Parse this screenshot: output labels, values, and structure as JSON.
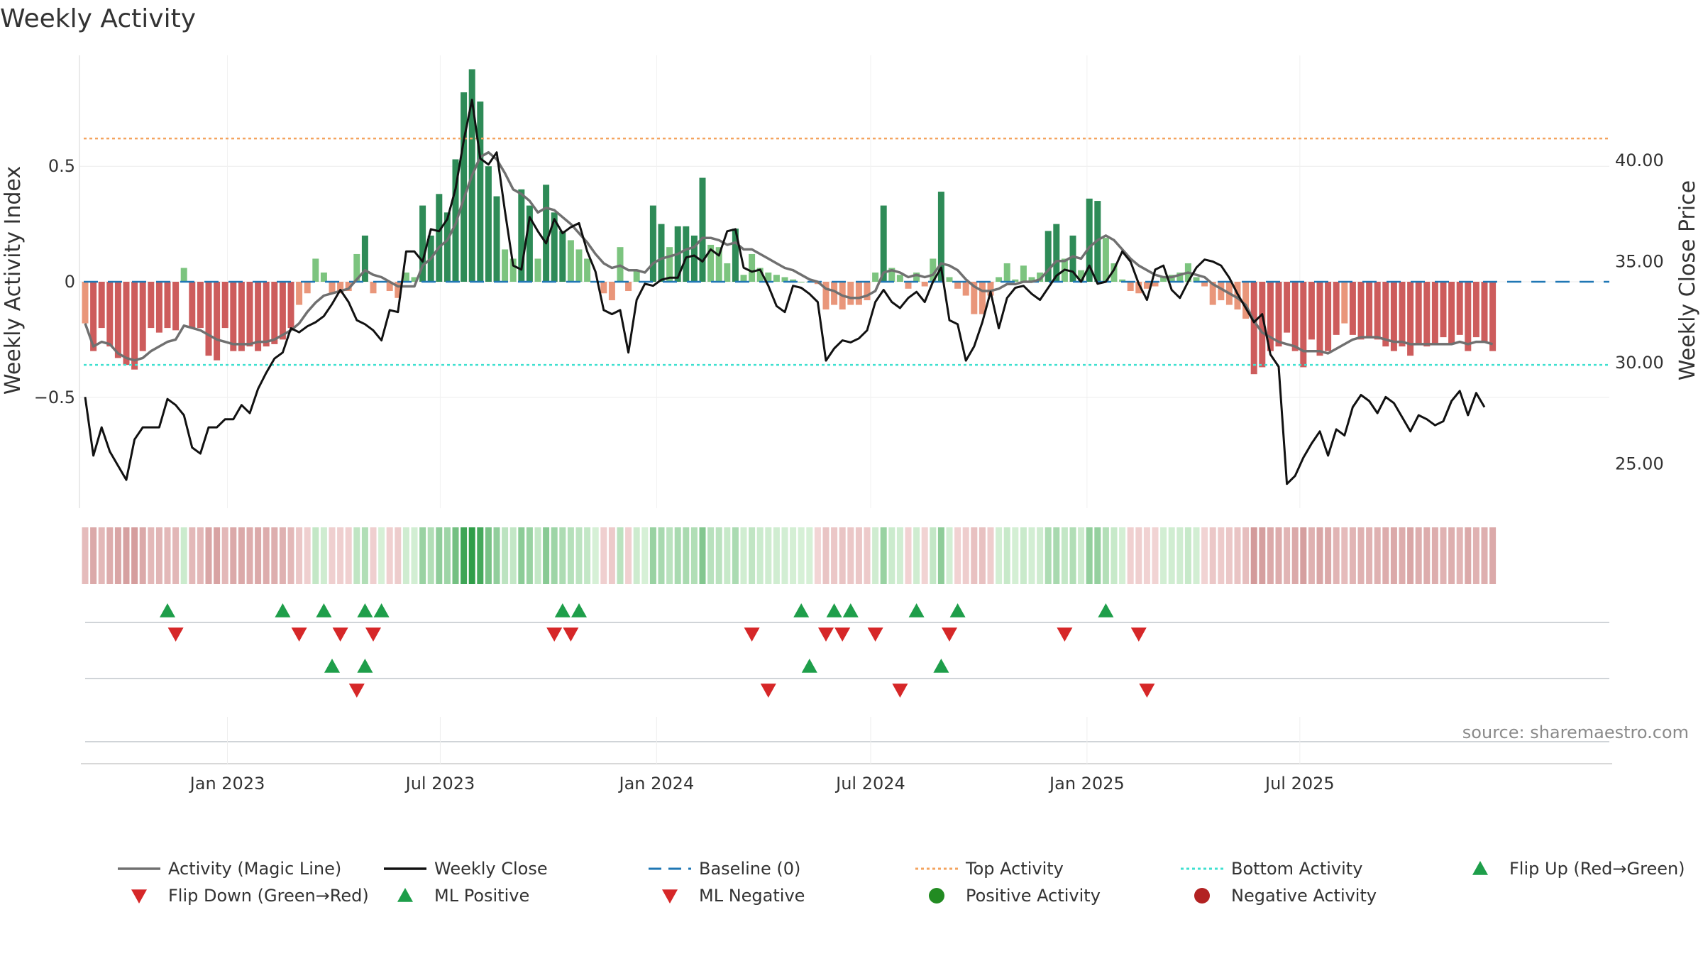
{
  "chart_data": {
    "type": "bar",
    "title": "Weekly Activity",
    "ylabel_left": "Weekly Activity Index",
    "ylabel_right": "Weekly Close Price",
    "source": "source: sharemaestro.com",
    "x_start": "2022-09-02",
    "x_step_days": 7,
    "x_tick_labels": [
      "Jan 2023",
      "Jul 2023",
      "Jan 2024",
      "Jul 2024",
      "Jan 2025",
      "Jul 2025"
    ],
    "x_tick_dates": [
      "2023-01-01",
      "2023-07-01",
      "2024-01-01",
      "2024-07-01",
      "2025-01-01",
      "2025-07-01"
    ],
    "y_left_ticks": [
      {
        "value": 0.5,
        "label": "0.5"
      },
      {
        "value": 0,
        "label": "0"
      },
      {
        "value": -0.5,
        "label": "−0.5"
      }
    ],
    "y_left_range": [
      -0.98,
      0.98
    ],
    "y_right_ticks": [
      {
        "value": 40,
        "label": "40.00"
      },
      {
        "value": 35,
        "label": "35.00"
      },
      {
        "value": 30,
        "label": "30.00"
      },
      {
        "value": 25,
        "label": "25.00"
      }
    ],
    "y_right_range": [
      22.8,
      45.2
    ],
    "top_activity": 0.62,
    "bottom_activity": -0.36,
    "colors": {
      "pos_strong": "#2e8b57",
      "pos_light": "#7cc47f",
      "neg_strong": "#cd5c5c",
      "neg_light": "#e9967a",
      "magic": "#707070",
      "close": "#111111",
      "baseline": "#1f77b4",
      "top": "#f4a460",
      "bottom": "#40e0d0",
      "up": "#1e9e4a",
      "down": "#d62728",
      "pos_dot": "#228b22",
      "neg_dot": "#b22222"
    },
    "activity": [
      -0.18,
      -0.3,
      -0.2,
      -0.28,
      -0.33,
      -0.36,
      -0.38,
      -0.3,
      -0.2,
      -0.22,
      -0.2,
      -0.21,
      0.06,
      -0.2,
      -0.2,
      -0.32,
      -0.34,
      -0.2,
      -0.3,
      -0.3,
      -0.28,
      -0.3,
      -0.28,
      -0.27,
      -0.25,
      -0.2,
      -0.1,
      -0.05,
      0.1,
      0.04,
      -0.05,
      -0.05,
      -0.04,
      0.12,
      0.2,
      -0.05,
      0,
      -0.04,
      -0.07,
      0.04,
      0.02,
      0.33,
      0.2,
      0.38,
      0.3,
      0.53,
      0.82,
      0.92,
      0.78,
      0.5,
      0.37,
      0.14,
      0.1,
      0.4,
      0.33,
      0.1,
      0.42,
      0.3,
      0.22,
      0.18,
      0.14,
      0.1,
      0,
      -0.05,
      -0.08,
      0.15,
      -0.04,
      0.05,
      0,
      0.33,
      0.25,
      0.15,
      0.24,
      0.24,
      0.2,
      0.45,
      0.16,
      0.15,
      0.08,
      0.23,
      0.03,
      0.12,
      0.06,
      0.04,
      0.03,
      0.02,
      0.01,
      0,
      0,
      -0.01,
      -0.12,
      -0.1,
      -0.12,
      -0.1,
      -0.1,
      -0.08,
      0.04,
      0.33,
      0.06,
      0.03,
      -0.03,
      0.04,
      -0.02,
      0.1,
      0.39,
      0.02,
      -0.03,
      -0.06,
      -0.14,
      -0.14,
      -0.06,
      0.02,
      0.08,
      0.01,
      0.07,
      0.02,
      0.04,
      0.22,
      0.25,
      0.1,
      0.2,
      0.05,
      0.36,
      0.35,
      0.19,
      0.08,
      0.01,
      -0.04,
      -0.05,
      -0.03,
      -0.02,
      0.02,
      0.03,
      0.04,
      0.08,
      0.02,
      -0.02,
      -0.1,
      -0.08,
      -0.1,
      -0.12,
      -0.16,
      -0.4,
      -0.37,
      -0.3,
      -0.28,
      -0.22,
      -0.3,
      -0.37,
      -0.25,
      -0.32,
      -0.3,
      -0.23,
      -0.18,
      -0.23,
      -0.25,
      -0.24,
      -0.25,
      -0.28,
      -0.3,
      -0.28,
      -0.32,
      -0.27,
      -0.28,
      -0.27,
      -0.24,
      -0.27,
      -0.23,
      -0.3,
      -0.24,
      -0.26,
      -0.3
    ],
    "magic_line": [
      -0.18,
      -0.28,
      -0.26,
      -0.27,
      -0.31,
      -0.33,
      -0.34,
      -0.33,
      -0.3,
      -0.28,
      -0.26,
      -0.25,
      -0.19,
      -0.2,
      -0.21,
      -0.23,
      -0.25,
      -0.26,
      -0.27,
      -0.27,
      -0.27,
      -0.26,
      -0.26,
      -0.25,
      -0.23,
      -0.21,
      -0.18,
      -0.13,
      -0.09,
      -0.06,
      -0.05,
      -0.04,
      -0.03,
      0.01,
      0.05,
      0.03,
      0.02,
      0,
      -0.02,
      -0.02,
      -0.02,
      0.07,
      0.1,
      0.15,
      0.18,
      0.25,
      0.36,
      0.46,
      0.54,
      0.56,
      0.53,
      0.47,
      0.4,
      0.38,
      0.35,
      0.3,
      0.32,
      0.31,
      0.28,
      0.25,
      0.21,
      0.17,
      0.12,
      0.08,
      0.06,
      0.07,
      0.05,
      0.05,
      0.04,
      0.08,
      0.1,
      0.11,
      0.12,
      0.14,
      0.15,
      0.19,
      0.19,
      0.18,
      0.16,
      0.17,
      0.14,
      0.14,
      0.12,
      0.1,
      0.08,
      0.06,
      0.05,
      0.03,
      0.01,
      0,
      -0.03,
      -0.04,
      -0.06,
      -0.07,
      -0.07,
      -0.06,
      -0.04,
      0.04,
      0.05,
      0.04,
      0.02,
      0.03,
      0.02,
      0.03,
      0.08,
      0.07,
      0.05,
      0.01,
      -0.02,
      -0.04,
      -0.04,
      -0.03,
      -0.01,
      -0.01,
      0,
      0,
      0.01,
      0.05,
      0.09,
      0.09,
      0.11,
      0.1,
      0.15,
      0.18,
      0.2,
      0.18,
      0.14,
      0.1,
      0.07,
      0.05,
      0.03,
      0.02,
      0.02,
      0.03,
      0.04,
      0.03,
      0.02,
      -0.01,
      -0.03,
      -0.05,
      -0.07,
      -0.1,
      -0.17,
      -0.22,
      -0.24,
      -0.26,
      -0.27,
      -0.28,
      -0.3,
      -0.3,
      -0.3,
      -0.31,
      -0.29,
      -0.27,
      -0.25,
      -0.24,
      -0.24,
      -0.24,
      -0.25,
      -0.26,
      -0.26,
      -0.27,
      -0.27,
      -0.27,
      -0.27,
      -0.27,
      -0.27,
      -0.26,
      -0.27,
      -0.26,
      -0.26,
      -0.27
    ],
    "weekly_close": [
      28.3,
      25.4,
      26.8,
      25.6,
      24.9,
      24.2,
      26.2,
      26.8,
      26.8,
      26.8,
      28.2,
      27.9,
      27.4,
      25.8,
      25.5,
      26.8,
      26.8,
      27.2,
      27.2,
      27.9,
      27.5,
      28.7,
      29.5,
      30.2,
      30.5,
      31.7,
      31.5,
      31.8,
      32.0,
      32.3,
      32.9,
      33.6,
      33.0,
      32.1,
      31.9,
      31.6,
      31.1,
      32.6,
      32.5,
      35.5,
      35.5,
      35.0,
      36.6,
      36.5,
      37.1,
      38.6,
      41.0,
      43.0,
      40.1,
      39.8,
      40.4,
      37.5,
      34.8,
      34.6,
      37.2,
      36.5,
      35.9,
      37.1,
      36.4,
      36.7,
      36.9,
      35.5,
      34.5,
      32.6,
      32.4,
      32.6,
      30.5,
      33.1,
      33.9,
      33.8,
      34.1,
      34.2,
      34.2,
      35.2,
      35.3,
      35.0,
      35.6,
      35.3,
      36.5,
      36.6,
      34.7,
      34.5,
      34.6,
      33.8,
      32.8,
      32.5,
      33.8,
      33.7,
      33.4,
      33.0,
      30.1,
      30.7,
      31.1,
      31.0,
      31.2,
      31.6,
      33.0,
      33.6,
      33.0,
      32.7,
      33.2,
      33.5,
      33.0,
      34.0,
      34.7,
      32.1,
      31.9,
      30.1,
      30.8,
      32.0,
      33.5,
      31.7,
      33.2,
      33.7,
      33.8,
      33.4,
      33.1,
      33.7,
      34.3,
      34.6,
      34.5,
      34.0,
      34.8,
      33.9,
      34.0,
      34.6,
      35.5,
      35.0,
      33.9,
      33.1,
      34.6,
      34.8,
      33.6,
      33.2,
      34.0,
      34.7,
      35.1,
      35.0,
      34.8,
      34.2,
      33.4,
      32.7,
      32.0,
      32.4,
      30.4,
      29.8,
      24.0,
      24.4,
      25.3,
      26.0,
      26.6,
      25.4,
      26.7,
      26.4,
      27.8,
      28.4,
      28.1,
      27.5,
      28.3,
      28.0,
      27.3,
      26.6,
      27.4,
      27.2,
      26.9,
      27.1,
      28.1,
      28.6,
      27.4,
      28.5,
      27.8
    ],
    "flip_up": [
      10,
      24,
      29,
      34,
      36,
      58,
      60,
      87,
      91,
      93,
      101,
      106,
      124
    ],
    "flip_down": [
      11,
      26,
      31,
      35,
      57,
      59,
      81,
      90,
      92,
      96,
      105,
      119,
      128
    ],
    "ml_positive": [
      30,
      34,
      88,
      104
    ],
    "ml_negative": [
      33,
      83,
      99,
      129
    ],
    "legend": [
      {
        "key": "magic",
        "label": "Activity (Magic Line)",
        "marker": "solid"
      },
      {
        "key": "close",
        "label": "Weekly Close",
        "marker": "solid"
      },
      {
        "key": "baseline",
        "label": "Baseline (0)",
        "marker": "dashed"
      },
      {
        "key": "top",
        "label": "Top Activity",
        "marker": "dotted"
      },
      {
        "key": "bottom",
        "label": "Bottom Activity",
        "marker": "dotted"
      },
      {
        "key": "up",
        "label": "Flip Up (Red→Green)",
        "marker": "tri-up"
      },
      {
        "key": "down",
        "label": "Flip Down (Green→Red)",
        "marker": "tri-down"
      },
      {
        "key": "up",
        "label": "ML Positive",
        "marker": "tri-up"
      },
      {
        "key": "down",
        "label": "ML Negative",
        "marker": "tri-down"
      },
      {
        "key": "pos_dot",
        "label": "Positive Activity",
        "marker": "dot"
      },
      {
        "key": "neg_dot",
        "label": "Negative Activity",
        "marker": "dot"
      }
    ]
  }
}
